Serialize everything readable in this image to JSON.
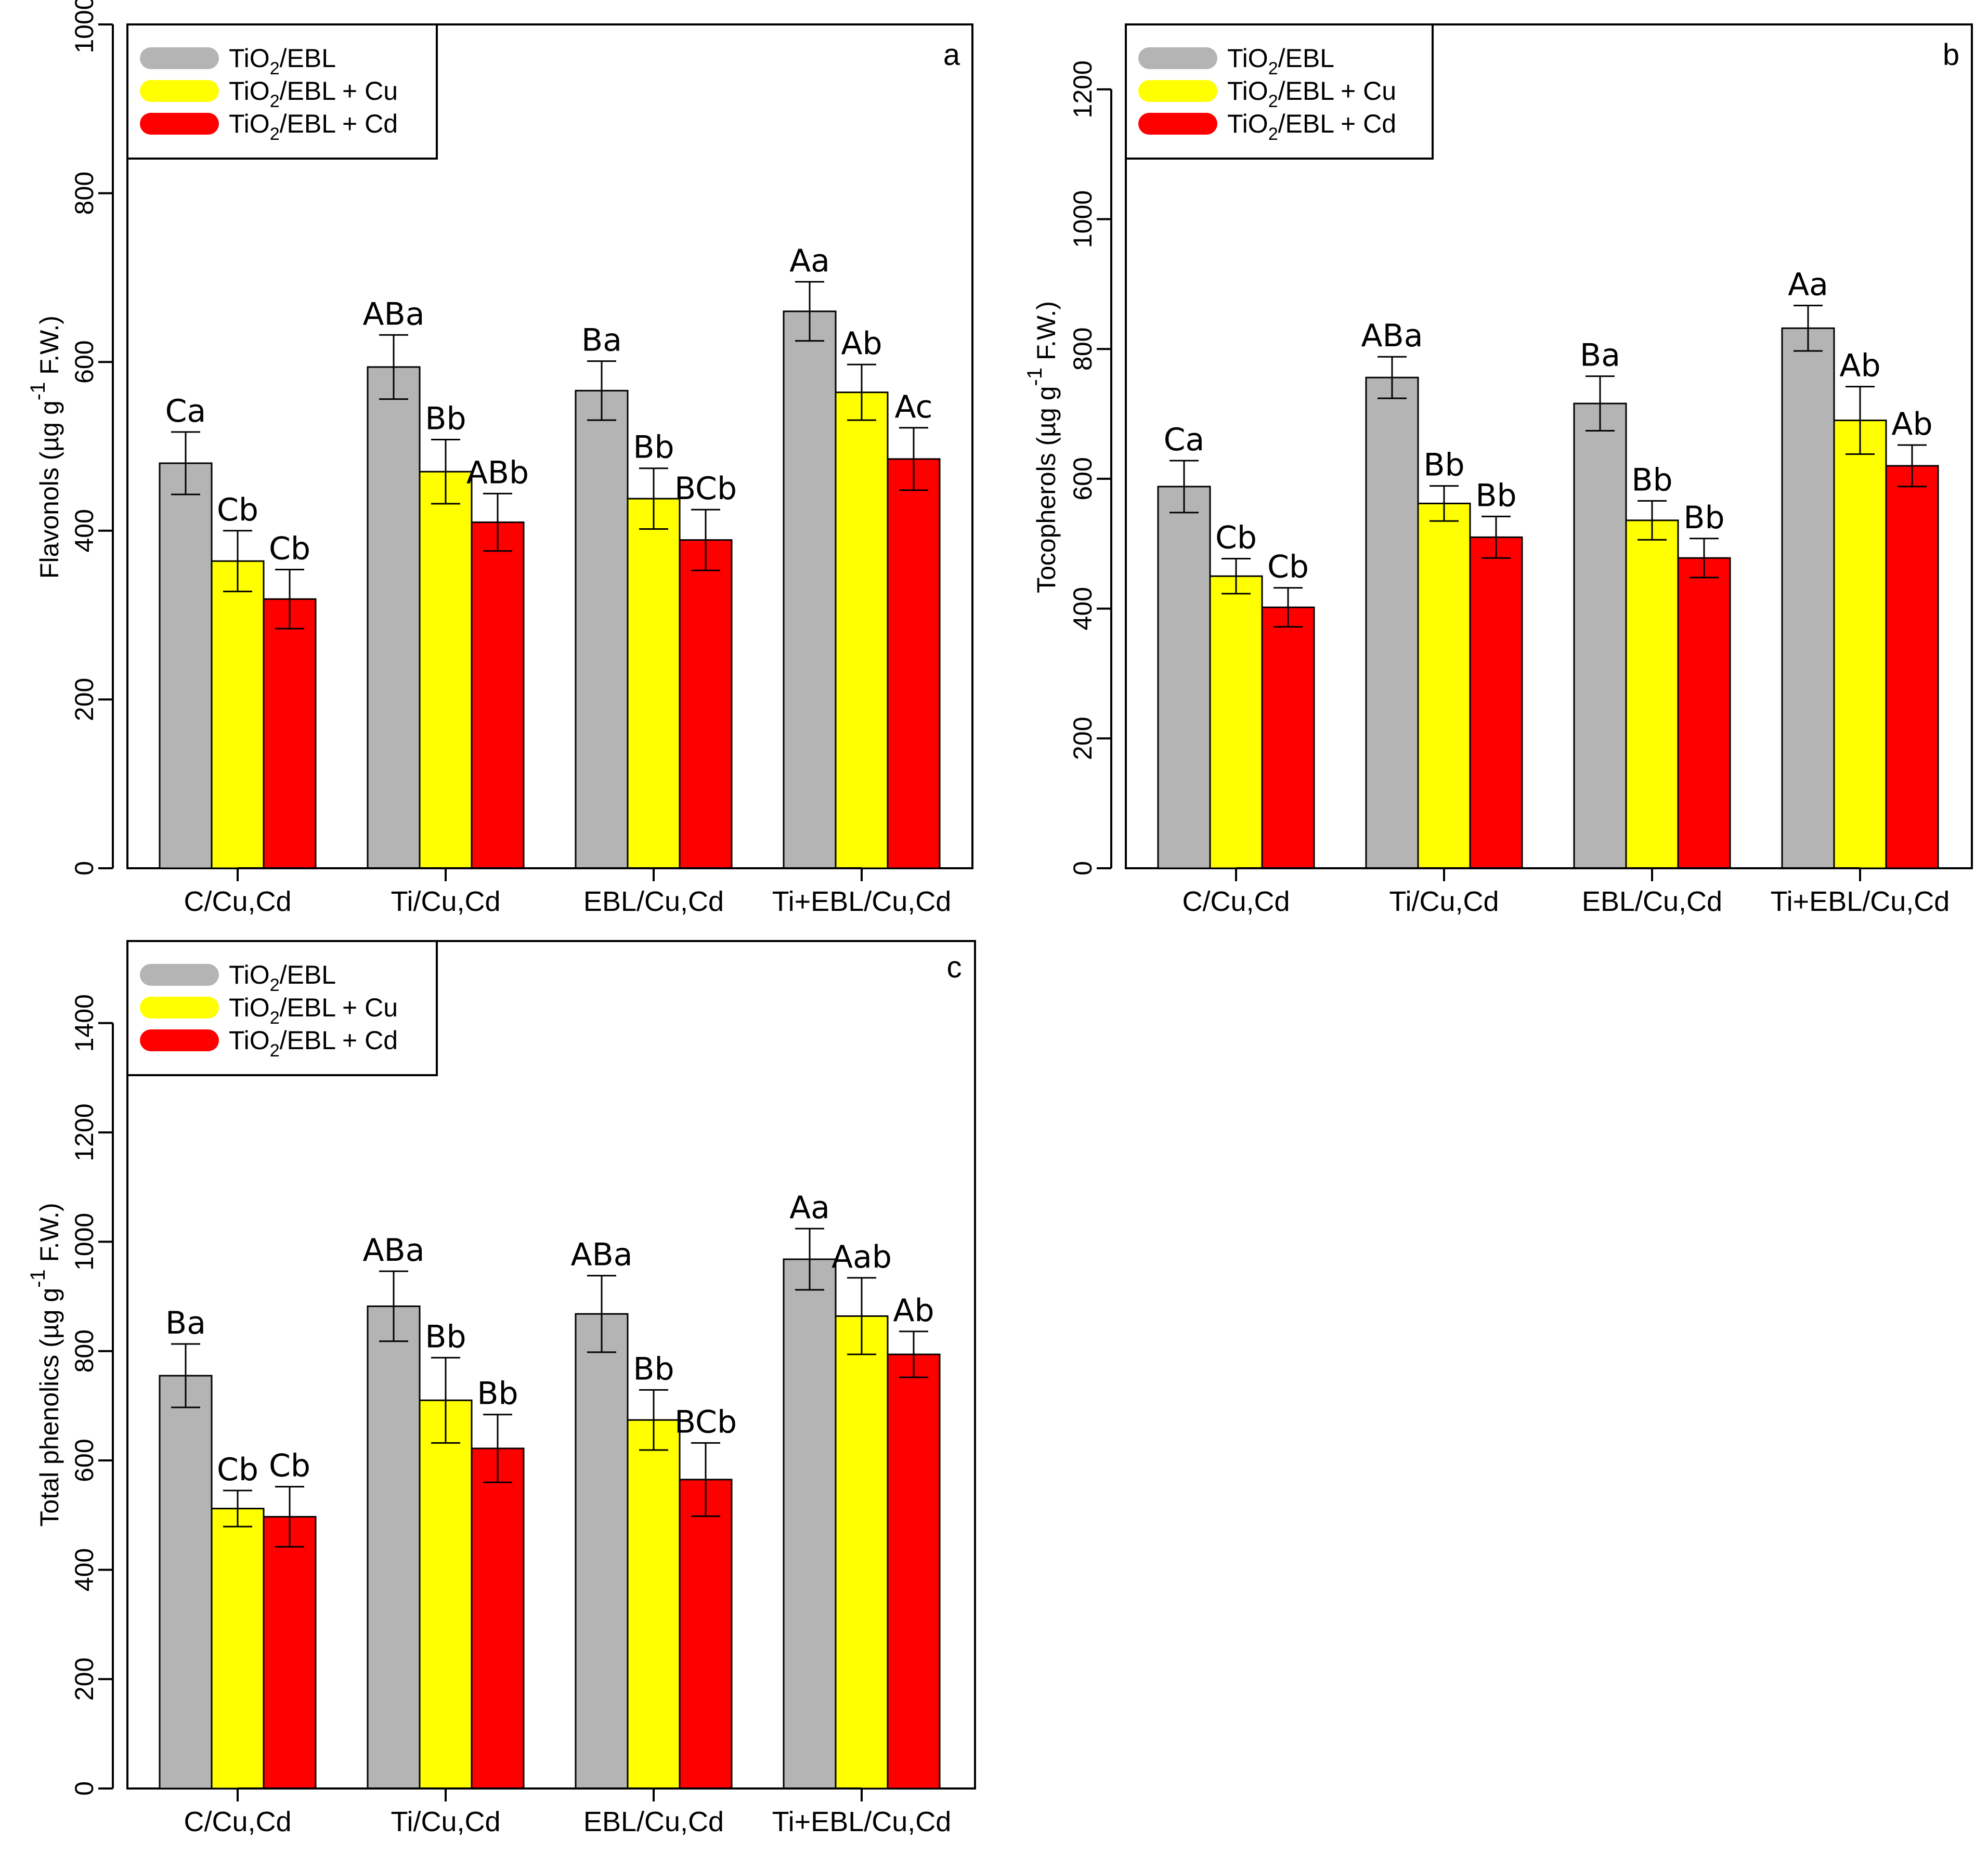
{
  "colors": {
    "gray": "#b4b4b4",
    "yellow": "#ffff00",
    "red": "#ff0000",
    "axis": "#000000"
  },
  "chart_data": [
    {
      "type": "bar",
      "panel": "a",
      "ylabel": {
        "main": "Flavonols (µg g",
        "sup": "-1",
        "tail": " F.W.)"
      },
      "ylim": [
        0,
        1000
      ],
      "yticks": [
        "0",
        "200",
        "400",
        "600",
        "800",
        "1000"
      ],
      "categories": [
        "C/Cu,Cd",
        "Ti/Cu,Cd",
        "EBL/Cu,Cd",
        "Ti+EBL/Cu,Cd"
      ],
      "legend": [
        {
          "pre": "TiO",
          "sub": "2",
          "post": "/EBL",
          "color": "gray"
        },
        {
          "pre": "TiO",
          "sub": "2",
          "post": "/EBL + Cu",
          "color": "yellow"
        },
        {
          "pre": "TiO",
          "sub": "2",
          "post": "/EBL + Cd",
          "color": "red"
        }
      ],
      "series": [
        {
          "name": "TiO2/EBL",
          "color": "gray",
          "values": [
            480,
            594,
            566,
            660
          ],
          "errors": [
            37,
            38,
            35,
            35
          ],
          "labels": [
            "Ca",
            "ABa",
            "Ba",
            "Aa"
          ]
        },
        {
          "name": "TiO2/EBL + Cu",
          "color": "yellow",
          "values": [
            364,
            470,
            438,
            564
          ],
          "errors": [
            36,
            38,
            36,
            33
          ],
          "labels": [
            "Cb",
            "Bb",
            "Bb",
            "Ab"
          ]
        },
        {
          "name": "TiO2/EBL + Cd",
          "color": "red",
          "values": [
            319,
            410,
            389,
            485
          ],
          "errors": [
            35,
            34,
            36,
            37
          ],
          "labels": [
            "Cb",
            "ABb",
            "BCb",
            "Ac"
          ]
        }
      ]
    },
    {
      "type": "bar",
      "panel": "b",
      "ylabel": {
        "main": "Tocopherols (µg g",
        "sup": "-1",
        "tail": " F.W.)"
      },
      "ylim": [
        0,
        1300
      ],
      "yticks": [
        "0",
        "200",
        "400",
        "600",
        "800",
        "1000",
        "1200"
      ],
      "categories": [
        "C/Cu,Cd",
        "Ti/Cu,Cd",
        "EBL/Cu,Cd",
        "Ti+EBL/Cu,Cd"
      ],
      "legend": [
        {
          "pre": "TiO",
          "sub": "2",
          "post": "/EBL",
          "color": "gray"
        },
        {
          "pre": "TiO",
          "sub": "2",
          "post": "/EBL + Cu",
          "color": "yellow"
        },
        {
          "pre": "TiO",
          "sub": "2",
          "post": "/EBL + Cd",
          "color": "red"
        }
      ],
      "series": [
        {
          "name": "TiO2/EBL",
          "color": "gray",
          "values": [
            588,
            756,
            716,
            832
          ],
          "errors": [
            40,
            32,
            42,
            35
          ],
          "labels": [
            "Ca",
            "ABa",
            "Ba",
            "Aa"
          ]
        },
        {
          "name": "TiO2/EBL + Cu",
          "color": "yellow",
          "values": [
            450,
            562,
            536,
            690
          ],
          "errors": [
            27,
            27,
            30,
            52
          ],
          "labels": [
            "Cb",
            "Bb",
            "Bb",
            "Ab"
          ]
        },
        {
          "name": "TiO2/EBL + Cd",
          "color": "red",
          "values": [
            402,
            510,
            478,
            620
          ],
          "errors": [
            30,
            32,
            30,
            32
          ],
          "labels": [
            "Cb",
            "Bb",
            "Bb",
            "Ab"
          ]
        }
      ]
    },
    {
      "type": "bar",
      "panel": "c",
      "ylabel": {
        "main": "Total phenolics (µg g",
        "sup": "-1",
        "tail": " F.W.)"
      },
      "ylim": [
        0,
        1550
      ],
      "yticks": [
        "0",
        "200",
        "400",
        "600",
        "800",
        "1000",
        "1200",
        "1400"
      ],
      "categories": [
        "C/Cu,Cd",
        "Ti/Cu,Cd",
        "EBL/Cu,Cd",
        "Ti+EBL/Cu,Cd"
      ],
      "legend": [
        {
          "pre": "TiO",
          "sub": "2",
          "post": "/EBL",
          "color": "gray"
        },
        {
          "pre": "TiO",
          "sub": "2",
          "post": "/EBL + Cu",
          "color": "yellow"
        },
        {
          "pre": "TiO",
          "sub": "2",
          "post": "/EBL + Cd",
          "color": "red"
        }
      ],
      "series": [
        {
          "name": "TiO2/EBL",
          "color": "gray",
          "values": [
            755,
            882,
            868,
            968
          ],
          "errors": [
            58,
            64,
            70,
            56
          ],
          "labels": [
            "Ba",
            "ABa",
            "ABa",
            "Aa"
          ]
        },
        {
          "name": "TiO2/EBL + Cu",
          "color": "yellow",
          "values": [
            512,
            710,
            674,
            864
          ],
          "errors": [
            33,
            78,
            55,
            70
          ],
          "labels": [
            "Cb",
            "Bb",
            "Bb",
            "Aab"
          ]
        },
        {
          "name": "TiO2/EBL + Cd",
          "color": "red",
          "values": [
            497,
            622,
            565,
            794
          ],
          "errors": [
            55,
            62,
            67,
            42
          ],
          "labels": [
            "Cb",
            "Bb",
            "BCb",
            "Ab"
          ]
        }
      ]
    }
  ]
}
